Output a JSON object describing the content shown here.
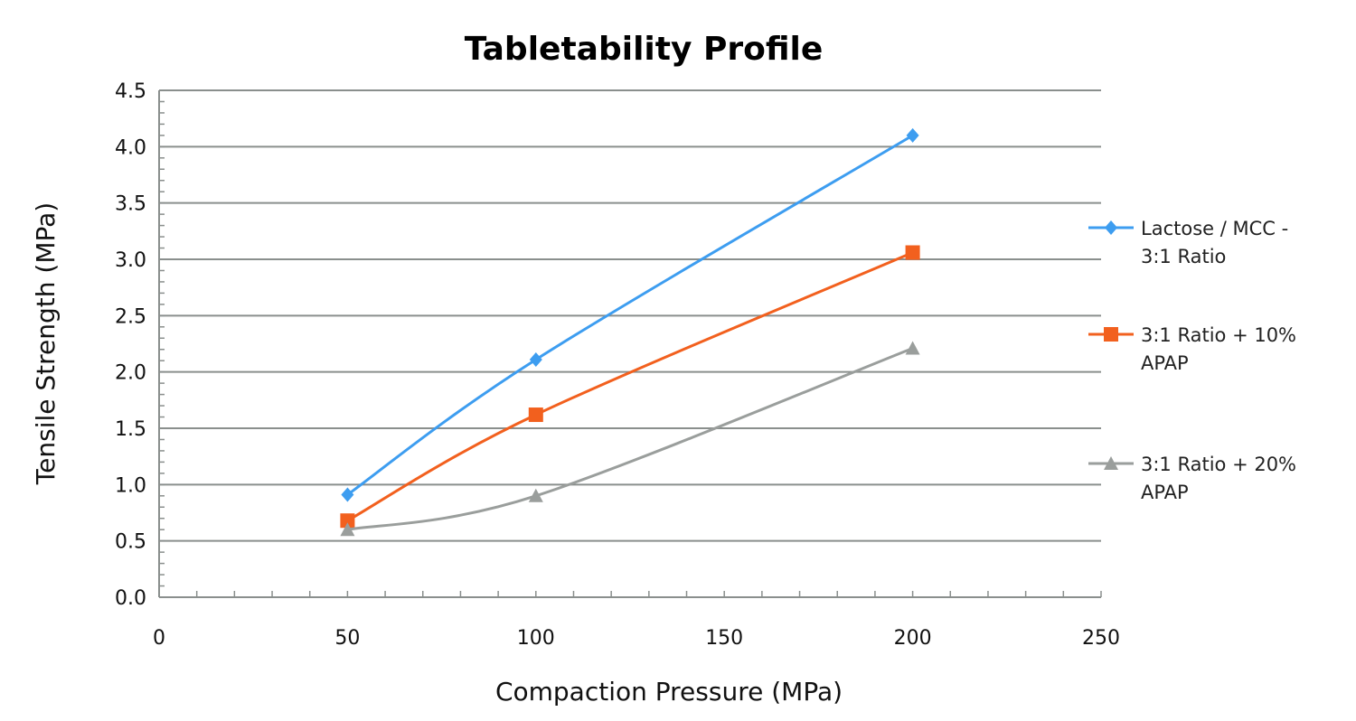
{
  "chart_data": {
    "type": "line",
    "title": "Tabletability  Profile",
    "xlabel": "Compaction Pressure (MPa)",
    "ylabel": "Tensile Strength (MPa)",
    "xlim": [
      0,
      250
    ],
    "ylim": [
      0,
      4.5
    ],
    "xticks": [
      "0",
      "50",
      "100",
      "150",
      "200",
      "250"
    ],
    "yticks": [
      "0.0",
      "0.5",
      "1.0",
      "1.5",
      "2.0",
      "2.5",
      "3.0",
      "3.5",
      "4.0",
      "4.5"
    ],
    "grid": "horizontal",
    "legend_position": "right",
    "x": [
      50,
      100,
      200
    ],
    "series": [
      {
        "name": "Lactose / MCC - 3:1 Ratio",
        "legend_lines": [
          "Lactose / MCC -",
          "3:1 Ratio"
        ],
        "values": [
          0.91,
          2.11,
          4.1
        ],
        "color": "#3d9df0",
        "marker": "diamond"
      },
      {
        "name": "3:1 Ratio + 10% APAP",
        "legend_lines": [
          "3:1 Ratio + 10%",
          "APAP"
        ],
        "values": [
          0.68,
          1.62,
          3.06
        ],
        "color": "#f2601e",
        "marker": "square"
      },
      {
        "name": "3:1 Ratio + 20% APAP",
        "legend_lines": [
          "3:1 Ratio + 20%",
          "APAP"
        ],
        "values": [
          0.6,
          0.9,
          2.21
        ],
        "color": "#9a9e9c",
        "marker": "triangle"
      }
    ]
  }
}
